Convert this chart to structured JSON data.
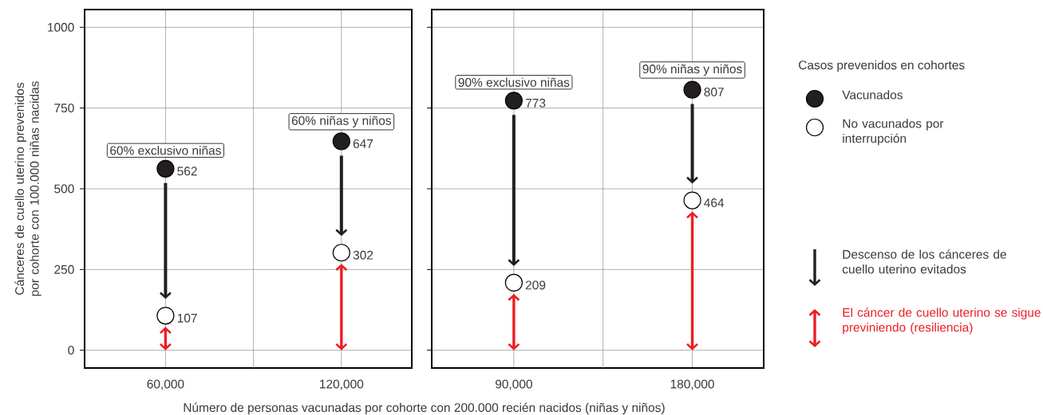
{
  "chart_data": [
    {
      "type": "scatter",
      "categories": [
        "60,000",
        "120,000"
      ],
      "ylabel": "Cánceres de cuello uterino prevenidos por cohorte con 100.000 niñas nacidas",
      "xlabel": "Número de personas vacunadas por cohorte con 200.000 recién nacidos (niñas y niños)",
      "ylim": [
        -55,
        1055
      ],
      "yticks": [
        0,
        250,
        500,
        750,
        1000
      ],
      "grid": true,
      "marker": "circle",
      "legend": "right",
      "legend_title": "Casos prevenidos en cohortes",
      "series": [
        {
          "name": "Vacunados",
          "color": "#231f20",
          "values": [
            562,
            647
          ],
          "value_labels": [
            "562",
            "647"
          ]
        },
        {
          "name": "No vacunados por interrupción",
          "color": "#ffffff",
          "values": [
            107,
            302
          ],
          "value_labels": [
            "107",
            "302"
          ]
        }
      ],
      "annotations": [
        "60% exclusivo niñas",
        "60% niñas y niños",
        "Descenso de los cánceres de cuello uterino evitados",
        "El cáncer de cuello uterino se sigue previniendo (resiliencia)"
      ]
    },
    {
      "type": "scatter",
      "categories": [
        "90,000",
        "180,000"
      ],
      "ylim": [
        -55,
        1055
      ],
      "yticks": [
        0,
        250,
        500,
        750,
        1000
      ],
      "grid": true,
      "marker": "circle",
      "tick_labels": "x",
      "series": [
        {
          "color": "#231f20",
          "values": [
            773,
            807
          ],
          "value_labels": [
            "773",
            "807"
          ]
        },
        {
          "color": "#ffffff",
          "values": [
            209,
            464
          ],
          "value_labels": [
            "209",
            "464"
          ]
        }
      ],
      "annotations": [
        "90% exclusivo niñas",
        "90% niñas y niños"
      ]
    }
  ]
}
